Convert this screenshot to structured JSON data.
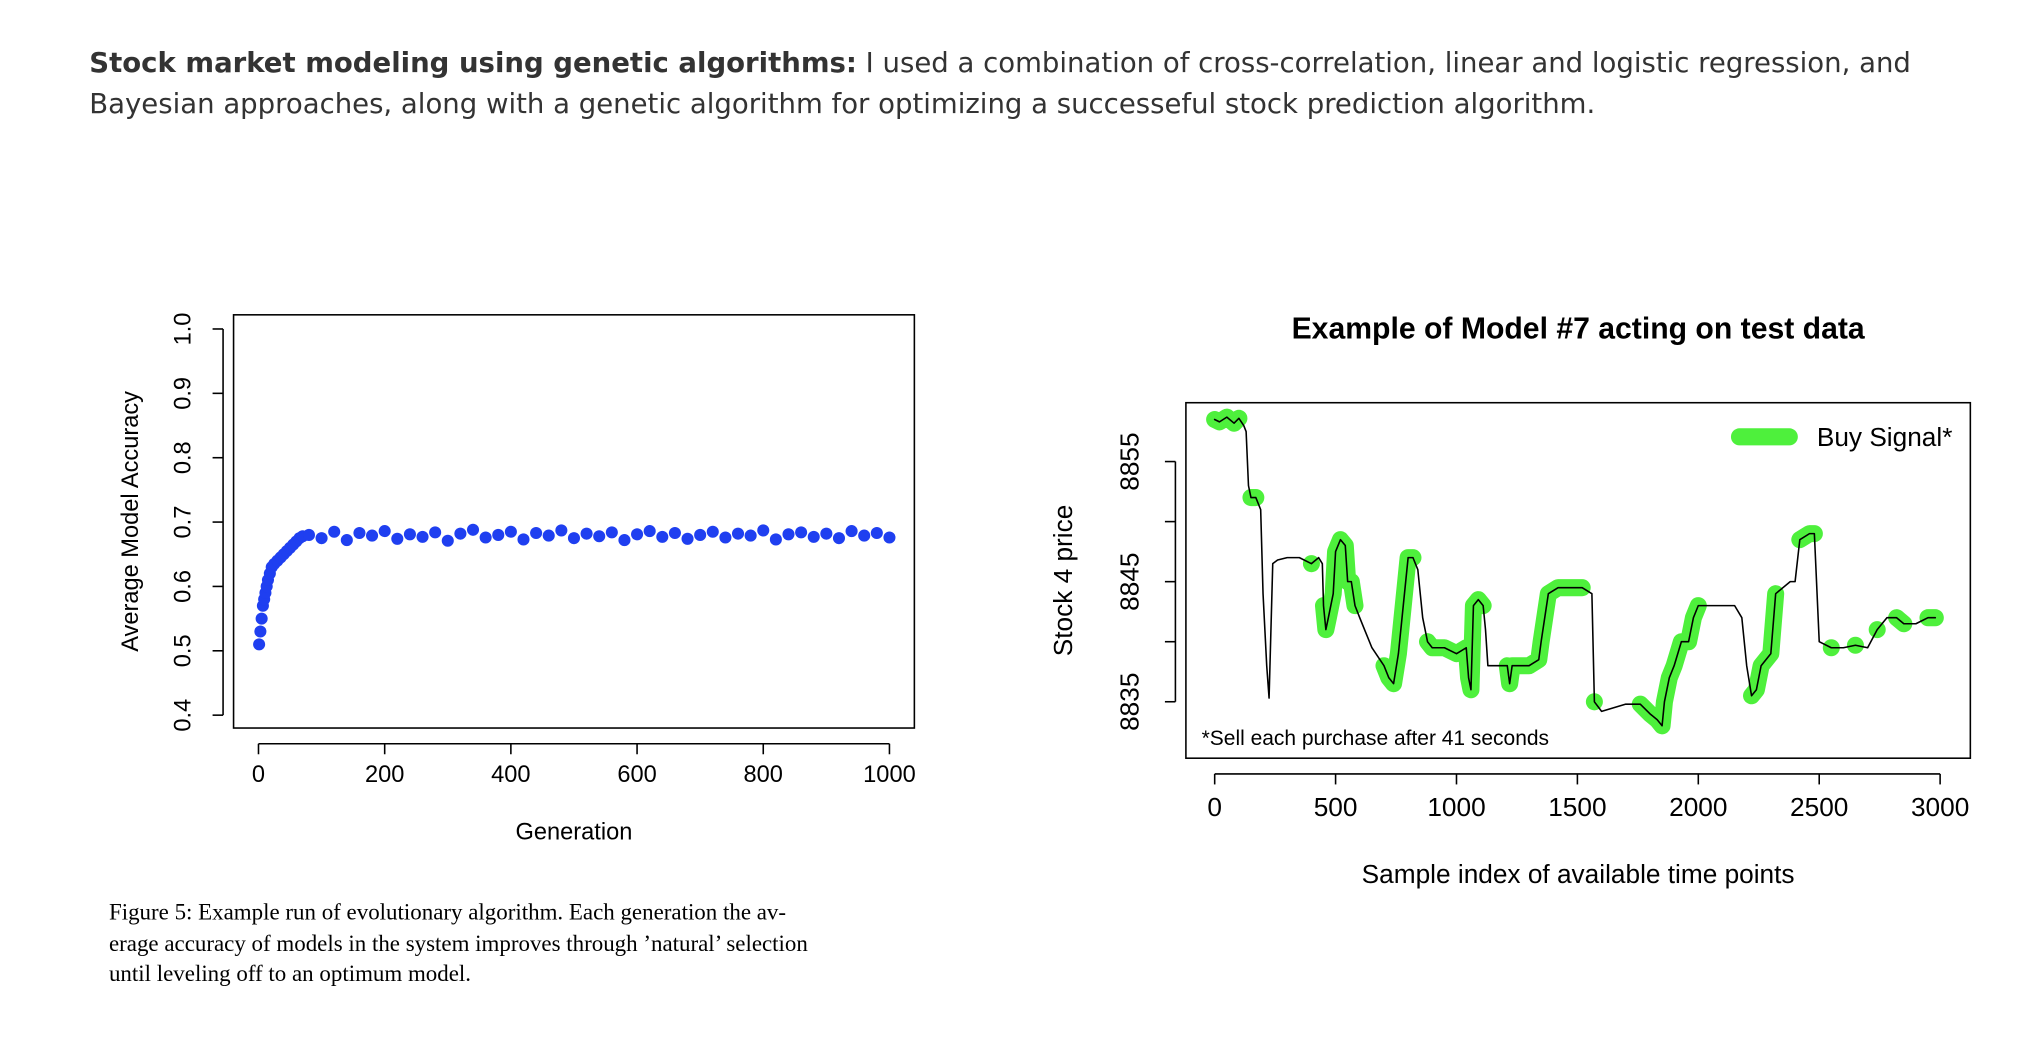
{
  "intro": {
    "title": "Stock market modeling using genetic algorithms:",
    "lines": [
      " I used a combination of cross-correlation, linear and logistic regression, and",
      "Bayesian approaches, along with a genetic algorithm for optimizing a successeful stock prediction algorithm."
    ]
  },
  "caption": [
    "Figure 5: Example run of evolutionary algorithm. Each generation the av-",
    "erage accuracy of models in the system improves through ’natural’ selection",
    "until leveling off to an optimum model."
  ],
  "chart_data": [
    {
      "type": "scatter",
      "xlabel": "Generation",
      "ylabel": "Average Model Accuracy",
      "color": "#1f3ff0",
      "x": [
        1,
        3,
        5,
        7,
        9,
        11,
        13,
        15,
        18,
        21,
        25,
        30,
        35,
        40,
        45,
        50,
        55,
        60,
        65,
        70,
        80,
        100,
        120,
        140,
        160,
        180,
        200,
        220,
        240,
        260,
        280,
        300,
        320,
        340,
        360,
        380,
        400,
        420,
        440,
        460,
        480,
        500,
        520,
        540,
        560,
        580,
        600,
        620,
        640,
        660,
        680,
        700,
        720,
        740,
        760,
        780,
        800,
        820,
        840,
        860,
        880,
        900,
        920,
        940,
        960,
        980,
        1000
      ],
      "values": [
        0.51,
        0.53,
        0.55,
        0.57,
        0.58,
        0.59,
        0.6,
        0.61,
        0.62,
        0.63,
        0.635,
        0.64,
        0.645,
        0.65,
        0.655,
        0.66,
        0.665,
        0.67,
        0.675,
        0.678,
        0.68,
        0.675,
        0.685,
        0.672,
        0.683,
        0.679,
        0.686,
        0.674,
        0.681,
        0.677,
        0.684,
        0.671,
        0.682,
        0.688,
        0.676,
        0.68,
        0.685,
        0.673,
        0.683,
        0.679,
        0.687,
        0.675,
        0.682,
        0.678,
        0.684,
        0.672,
        0.681,
        0.686,
        0.677,
        0.683,
        0.674,
        0.68,
        0.685,
        0.676,
        0.682,
        0.679,
        0.687,
        0.673,
        0.681,
        0.684,
        0.677,
        0.682,
        0.675,
        0.686,
        0.679,
        0.683,
        0.676
      ],
      "xlim": [
        -39.5,
        1039.5
      ],
      "ylim": [
        0.38,
        1.022
      ],
      "xticks": [
        0,
        200,
        400,
        600,
        800,
        1000
      ],
      "yticks": [
        0.4,
        0.5,
        0.6,
        0.7,
        0.8,
        0.9,
        {
          "value": 1,
          "label": "1.0"
        }
      ]
    },
    {
      "type": "line",
      "title": "Example of Model #7 acting on test data",
      "xlabel": "Sample index of available time points",
      "ylabel": "Stock 4 price",
      "annotation": "*Sell each purchase after 41 seconds",
      "legend": "top-right",
      "x": [
        0,
        20,
        50,
        80,
        100,
        120,
        130,
        140,
        150,
        170,
        190,
        200,
        215,
        225,
        240,
        260,
        300,
        350,
        400,
        430,
        445,
        450,
        460,
        470,
        490,
        500,
        520,
        540,
        550,
        565,
        580,
        600,
        620,
        650,
        700,
        720,
        740,
        760,
        780,
        800,
        820,
        840,
        860,
        880,
        900,
        950,
        1000,
        1040,
        1050,
        1060,
        1070,
        1090,
        1110,
        1120,
        1130,
        1200,
        1210,
        1220,
        1230,
        1300,
        1340,
        1350,
        1380,
        1420,
        1480,
        1520,
        1560,
        1570,
        1600,
        1650,
        1700,
        1760,
        1800,
        1830,
        1850,
        1860,
        1880,
        1900,
        1930,
        1960,
        1980,
        2000,
        2100,
        2150,
        2180,
        2200,
        2220,
        2240,
        2260,
        2300,
        2320,
        2380,
        2400,
        2420,
        2460,
        2480,
        2500,
        2550,
        2600,
        2650,
        2700,
        2740,
        2780,
        2820,
        2850,
        2900,
        2950,
        2980
      ],
      "series": [
        {
          "name": "Buy Signal*",
          "color": "#4ef03c",
          "values": [
            8858.5,
            8858.3,
            8858.7,
            8858.2,
            8858.6,
            null,
            null,
            null,
            8852,
            8852,
            null,
            null,
            null,
            null,
            null,
            null,
            null,
            null,
            8846.5,
            null,
            null,
            8843,
            8841,
            8842,
            8844,
            8847.5,
            8848.5,
            8848,
            8845,
            8845,
            8843,
            null,
            null,
            null,
            8838,
            8837,
            8836.5,
            8839,
            8843,
            8847,
            8847,
            null,
            null,
            8840,
            8839.5,
            8839.5,
            8839,
            8839.5,
            8837,
            8836,
            8843,
            8843.5,
            8843,
            null,
            null,
            null,
            8838,
            8836.5,
            8838,
            8838,
            8838.5,
            8840,
            8844,
            8844.5,
            8844.5,
            8844.5,
            null,
            8835,
            null,
            null,
            null,
            8834.8,
            8834,
            8833.5,
            8833,
            8835,
            8837,
            8838,
            8840,
            8840,
            8842,
            8843,
            null,
            null,
            null,
            null,
            8835.5,
            8836,
            8838,
            8839,
            8844,
            null,
            null,
            8848.5,
            8849,
            8849,
            null,
            8839.5,
            null,
            8839.7,
            null,
            8841,
            null,
            8842,
            8841.5,
            null,
            8842,
            8842
          ]
        },
        {
          "color": "#000000",
          "values": [
            8858.5,
            8858.3,
            8858.7,
            8858.2,
            8858.6,
            8858,
            8857.5,
            8853,
            8852,
            8852,
            8851,
            8844,
            8838,
            8835.3,
            8846.5,
            8846.8,
            8847,
            8847,
            8846.5,
            8847,
            8846.5,
            8843,
            8841,
            8842,
            8844,
            8847.5,
            8848.5,
            8848,
            8845,
            8845,
            8843,
            8842,
            8841,
            8839.5,
            8838,
            8837,
            8836.5,
            8839,
            8843,
            8847,
            8847,
            8846,
            8842,
            8840,
            8839.5,
            8839.5,
            8839,
            8839.5,
            8837,
            8836,
            8843,
            8843.5,
            8843,
            8841,
            8838,
            8838,
            8838,
            8836.5,
            8838,
            8838,
            8838.5,
            8840,
            8844,
            8844.5,
            8844.5,
            8844.5,
            8844,
            8835,
            8834.2,
            8834.5,
            8834.8,
            8834.8,
            8834,
            8833.5,
            8833,
            8835,
            8837,
            8838,
            8840,
            8840,
            8842,
            8843,
            8843,
            8843,
            8842,
            8838,
            8835.5,
            8836,
            8838,
            8839,
            8844,
            8845,
            8845,
            8848.5,
            8849,
            8849,
            8840,
            8839.5,
            8839.5,
            8839.7,
            8839.5,
            8841,
            8842,
            8842,
            8841.5,
            8841.5,
            8842,
            8842
          ]
        }
      ],
      "xlim": [
        -119,
        3125
      ],
      "ylim": [
        8830.3,
        8859.9
      ],
      "xticks": [
        0,
        500,
        1000,
        1500,
        2000,
        2500,
        3000
      ],
      "yticks": [
        8835,
        8845,
        8855
      ],
      "yminorticks": [
        8840,
        8850
      ]
    }
  ]
}
